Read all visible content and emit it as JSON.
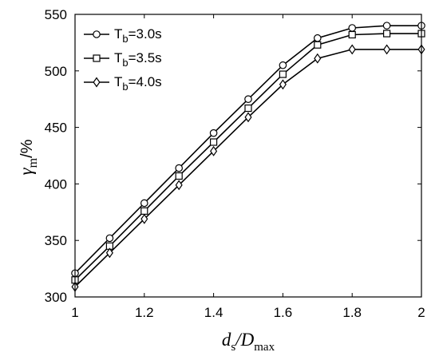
{
  "chart_data": {
    "type": "line",
    "x": [
      1.0,
      1.1,
      1.2,
      1.3,
      1.4,
      1.5,
      1.6,
      1.7,
      1.8,
      1.9,
      2.0
    ],
    "xlim": [
      1,
      2
    ],
    "ylim": [
      300,
      550
    ],
    "xticks": [
      "1",
      "1.2",
      "1.4",
      "1.6",
      "1.8",
      "2"
    ],
    "xtick_values": [
      1.0,
      1.2,
      1.4,
      1.6,
      1.8,
      2.0
    ],
    "yticks": [
      "300",
      "350",
      "400",
      "450",
      "500",
      "550"
    ],
    "ytick_values": [
      300,
      350,
      400,
      450,
      500,
      550
    ],
    "xlabel": {
      "main": "d",
      "sub1": "s",
      "mid": "/D",
      "sub2": "max"
    },
    "ylabel": {
      "main": "γ",
      "sub": "m",
      "unit": "/%"
    },
    "grid": false,
    "legend_position": "top-left",
    "series": [
      {
        "label_main": "T",
        "label_sub": "b",
        "label_rest": "=3.0s",
        "marker": "circle",
        "values": [
          321,
          352,
          383,
          414,
          445,
          475,
          505,
          529,
          538,
          540,
          540
        ]
      },
      {
        "label_main": "T",
        "label_sub": "b",
        "label_rest": "=3.5s",
        "marker": "square",
        "values": [
          315,
          345,
          376,
          407,
          437,
          467,
          497,
          523,
          532,
          533,
          533
        ]
      },
      {
        "label_main": "T",
        "label_sub": "b",
        "label_rest": "=4.0s",
        "marker": "diamond",
        "values": [
          309,
          339,
          369,
          399,
          429,
          459,
          488,
          511,
          519,
          519,
          519
        ]
      }
    ]
  }
}
